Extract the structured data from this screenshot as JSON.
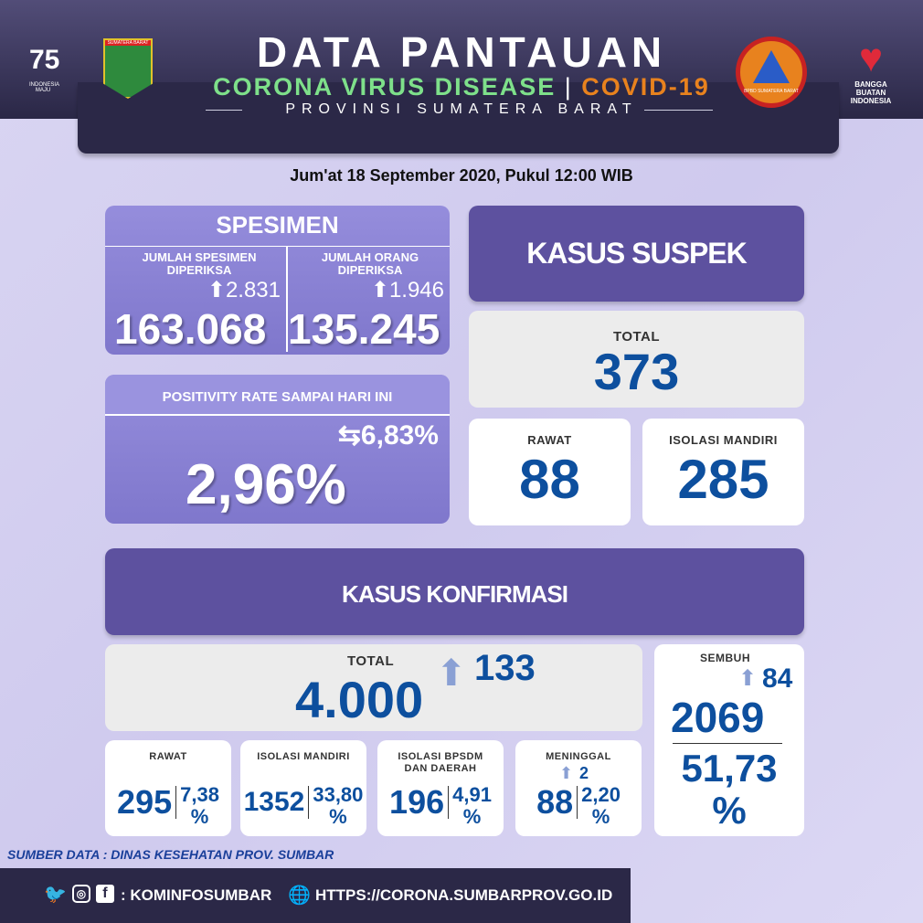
{
  "header": {
    "title": "DATA PANTAUAN",
    "subtitle_green": "CORONA VIRUS DISEASE",
    "subtitle_orange": "COVID-19",
    "province": "PROVINSI SUMATERA BARAT",
    "logo_left1": "INDONESIA MAJU",
    "logo_left2": "SUMATERA BARAT",
    "logo_right1": "BPBD SUMATERA BARAT",
    "logo_right2": "BANGGA BUATAN INDONESIA"
  },
  "date": "Jum'at 18 September 2020, Pukul 12:00 WIB",
  "spesimen": {
    "title": "SPESIMEN",
    "col1_label": "JUMLAH SPESIMEN DIPERIKSA",
    "col1_increase": "2.831",
    "col1_value": "163.068",
    "col2_label": "JUMLAH ORANG DIPERIKSA",
    "col2_increase": "1.946",
    "col2_value": "135.245"
  },
  "positivity": {
    "label": "POSITIVITY RATE SAMPAI HARI INI",
    "compare": "6,83%",
    "value": "2,96%"
  },
  "suspek": {
    "title": "KASUS SUSPEK",
    "total_label": "TOTAL",
    "total": "373",
    "rawat_label": "RAWAT",
    "rawat": "88",
    "isolasi_label": "ISOLASI MANDIRI",
    "isolasi": "285"
  },
  "konfirmasi": {
    "title": "KASUS KONFIRMASI",
    "total_label": "TOTAL",
    "total": "4.000",
    "total_increase": "133",
    "sembuh_label": "SEMBUH",
    "sembuh": "2069",
    "sembuh_increase": "84",
    "sembuh_pct": "51,73",
    "pct_sign": "%",
    "items": [
      {
        "label": "RAWAT",
        "label2": "",
        "value": "295",
        "pct": "7,38",
        "increase": ""
      },
      {
        "label": "ISOLASI MANDIRI",
        "label2": "",
        "value": "1352",
        "pct": "33,80",
        "increase": ""
      },
      {
        "label": "ISOLASI BPSDM",
        "label2": "DAN DAERAH",
        "value": "196",
        "pct": "4,91",
        "increase": ""
      },
      {
        "label": "MENINGGAL",
        "label2": "",
        "value": "88",
        "pct": "2,20",
        "increase": "2"
      }
    ]
  },
  "source": "SUMBER DATA : DINAS KESEHATAN PROV. SUMBAR",
  "footer": {
    "social": ": KOMINFOSUMBAR",
    "url": "HTTPS://CORONA.SUMBARPROV.GO.ID"
  },
  "colors": {
    "accent": "#5d519f",
    "number": "#0d4f9e",
    "green": "#7ee08a",
    "orange": "#e8821e"
  }
}
